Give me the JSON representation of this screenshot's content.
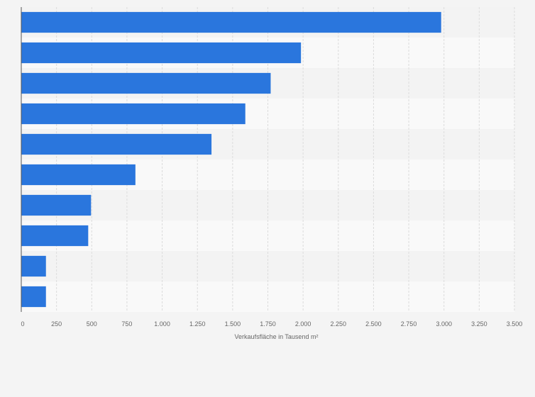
{
  "colors": {
    "background": "#f4f4f4",
    "band_light": "#f9f9f9",
    "band_dark": "#f3f3f3",
    "bar": "#2a76dd",
    "grid": "#dcdcdc",
    "axis": "#555555",
    "text": "#666666"
  },
  "chart_data": {
    "type": "bar",
    "orientation": "horizontal",
    "categories": [
      "",
      "",
      "",
      "",
      "",
      "",
      "",
      "",
      "",
      ""
    ],
    "values": [
      2980,
      1985,
      1770,
      1590,
      1350,
      810,
      495,
      475,
      175,
      175
    ],
    "title": "",
    "xlabel": "Verkaufsfläche in Tausend m²",
    "ylabel": "",
    "xlim": [
      0,
      3500
    ],
    "ticks": [
      0,
      250,
      500,
      750,
      1000,
      1250,
      1500,
      1750,
      2000,
      2250,
      2500,
      2750,
      3000,
      3250,
      3500
    ],
    "tick_labels": [
      "0",
      "250",
      "500",
      "750",
      "1.000",
      "1.250",
      "1.500",
      "1.750",
      "2.000",
      "2.250",
      "2.500",
      "2.750",
      "3.000",
      "3.250",
      "3.500"
    ],
    "grid": true,
    "legend": "none"
  }
}
